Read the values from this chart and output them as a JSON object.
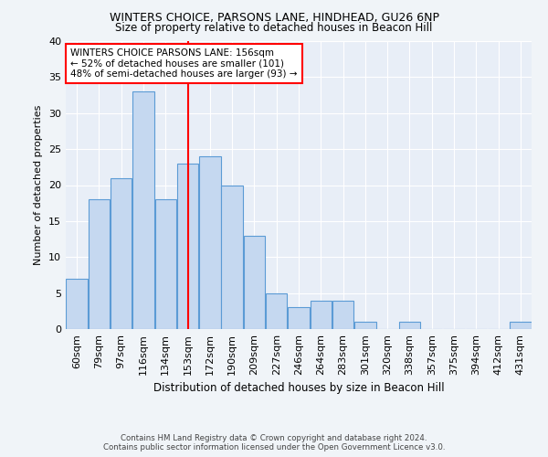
{
  "title1": "WINTERS CHOICE, PARSONS LANE, HINDHEAD, GU26 6NP",
  "title2": "Size of property relative to detached houses in Beacon Hill",
  "xlabel": "Distribution of detached houses by size in Beacon Hill",
  "ylabel": "Number of detached properties",
  "bin_labels": [
    "60sqm",
    "79sqm",
    "97sqm",
    "116sqm",
    "134sqm",
    "153sqm",
    "172sqm",
    "190sqm",
    "209sqm",
    "227sqm",
    "246sqm",
    "264sqm",
    "283sqm",
    "301sqm",
    "320sqm",
    "338sqm",
    "357sqm",
    "375sqm",
    "394sqm",
    "412sqm",
    "431sqm"
  ],
  "bar_heights": [
    7,
    18,
    21,
    33,
    18,
    23,
    24,
    20,
    13,
    5,
    3,
    4,
    4,
    1,
    0,
    1,
    0,
    0,
    0,
    0,
    1
  ],
  "bar_color": "#c5d8f0",
  "bar_edge_color": "#5b9bd5",
  "red_line_index": 5,
  "annotation_title": "WINTERS CHOICE PARSONS LANE: 156sqm",
  "annotation_line1": "← 52% of detached houses are smaller (101)",
  "annotation_line2": "48% of semi-detached houses are larger (93) →",
  "ylim": [
    0,
    40
  ],
  "yticks": [
    0,
    5,
    10,
    15,
    20,
    25,
    30,
    35,
    40
  ],
  "footer1": "Contains HM Land Registry data © Crown copyright and database right 2024.",
  "footer2": "Contains public sector information licensed under the Open Government Licence v3.0.",
  "bg_color": "#e8eef7",
  "fig_color": "#f0f4f8",
  "grid_color": "#ffffff"
}
